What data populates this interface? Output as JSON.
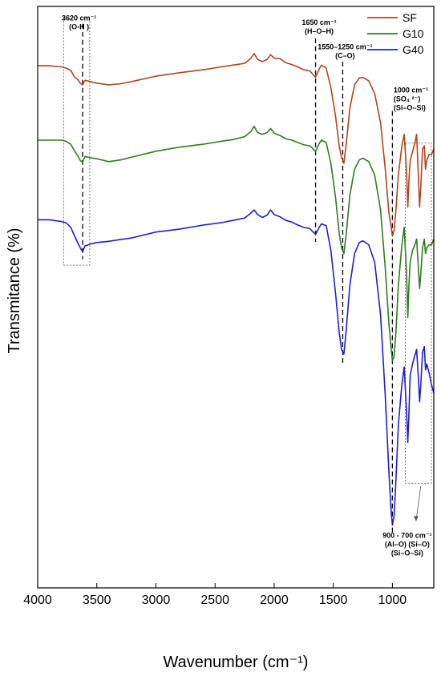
{
  "chart_data": {
    "type": "line",
    "xlabel": "Wavenumber (cm⁻¹)",
    "ylabel": "Transmitance (%)",
    "xlim": [
      4000,
      650
    ],
    "x_reversed": true,
    "x_ticks": [
      4000,
      3500,
      3000,
      2500,
      2000,
      1500,
      1000
    ],
    "y_ticks_shown": false,
    "y_units": "arbitrary transmittance (stacked, offset)",
    "ylim": [
      0,
      100
    ],
    "legend_position": "top-right",
    "series": [
      {
        "name": "SF",
        "color": "#b5441c",
        "points": [
          [
            4000,
            89.8
          ],
          [
            3900,
            89.8
          ],
          [
            3800,
            89.6
          ],
          [
            3760,
            89.4
          ],
          [
            3720,
            89.0
          ],
          [
            3690,
            87.9
          ],
          [
            3660,
            87.4
          ],
          [
            3640,
            86.8
          ],
          [
            3620,
            86.5
          ],
          [
            3600,
            87.3
          ],
          [
            3560,
            87.1
          ],
          [
            3500,
            86.8
          ],
          [
            3400,
            86.5
          ],
          [
            3300,
            86.7
          ],
          [
            3200,
            87.1
          ],
          [
            3000,
            88.0
          ],
          [
            2800,
            88.6
          ],
          [
            2600,
            89.1
          ],
          [
            2450,
            89.6
          ],
          [
            2350,
            89.9
          ],
          [
            2250,
            90.2
          ],
          [
            2200,
            91.0
          ],
          [
            2170,
            91.9
          ],
          [
            2140,
            90.9
          ],
          [
            2100,
            90.5
          ],
          [
            2060,
            90.9
          ],
          [
            2030,
            91.7
          ],
          [
            2000,
            91.1
          ],
          [
            1950,
            91.0
          ],
          [
            1900,
            90.3
          ],
          [
            1850,
            90.0
          ],
          [
            1800,
            89.6
          ],
          [
            1750,
            89.1
          ],
          [
            1700,
            88.9
          ],
          [
            1680,
            88.5
          ],
          [
            1650,
            87.8
          ],
          [
            1620,
            89.2
          ],
          [
            1600,
            89.9
          ],
          [
            1560,
            89.4
          ],
          [
            1520,
            86.0
          ],
          [
            1480,
            81.0
          ],
          [
            1450,
            76.0
          ],
          [
            1430,
            74.0
          ],
          [
            1410,
            73.0
          ],
          [
            1390,
            76.5
          ],
          [
            1360,
            82.5
          ],
          [
            1320,
            86.5
          ],
          [
            1280,
            87.7
          ],
          [
            1250,
            87.8
          ],
          [
            1200,
            87.2
          ],
          [
            1150,
            85.0
          ],
          [
            1100,
            80.0
          ],
          [
            1060,
            72.0
          ],
          [
            1030,
            64.5
          ],
          [
            1010,
            62.0
          ],
          [
            1000,
            60.5
          ],
          [
            985,
            61.5
          ],
          [
            970,
            65.0
          ],
          [
            950,
            71.0
          ],
          [
            920,
            76.0
          ],
          [
            900,
            78.0
          ],
          [
            880,
            71.5
          ],
          [
            870,
            65.5
          ],
          [
            860,
            70.0
          ],
          [
            850,
            73.5
          ],
          [
            830,
            75.0
          ],
          [
            810,
            76.5
          ],
          [
            795,
            78.0
          ],
          [
            780,
            71.0
          ],
          [
            770,
            65.5
          ],
          [
            760,
            69.0
          ],
          [
            745,
            75.5
          ],
          [
            730,
            76.0
          ],
          [
            720,
            72.0
          ],
          [
            710,
            73.5
          ],
          [
            690,
            74.5
          ],
          [
            670,
            74.5
          ],
          [
            650,
            75.5
          ]
        ]
      },
      {
        "name": "G10",
        "color": "#2e7d1f",
        "points": [
          [
            4000,
            77.0
          ],
          [
            3900,
            77.0
          ],
          [
            3800,
            77.0
          ],
          [
            3760,
            76.8
          ],
          [
            3720,
            76.3
          ],
          [
            3690,
            75.2
          ],
          [
            3660,
            74.3
          ],
          [
            3640,
            73.5
          ],
          [
            3620,
            73.2
          ],
          [
            3600,
            74.2
          ],
          [
            3560,
            74.0
          ],
          [
            3500,
            73.8
          ],
          [
            3400,
            73.3
          ],
          [
            3300,
            73.6
          ],
          [
            3200,
            74.1
          ],
          [
            3000,
            75.1
          ],
          [
            2800,
            75.8
          ],
          [
            2600,
            76.3
          ],
          [
            2450,
            76.8
          ],
          [
            2350,
            77.1
          ],
          [
            2250,
            77.6
          ],
          [
            2200,
            78.4
          ],
          [
            2170,
            79.4
          ],
          [
            2140,
            78.3
          ],
          [
            2100,
            78.0
          ],
          [
            2060,
            78.3
          ],
          [
            2030,
            79.0
          ],
          [
            2000,
            78.2
          ],
          [
            1950,
            77.8
          ],
          [
            1900,
            77.2
          ],
          [
            1850,
            77.0
          ],
          [
            1800,
            76.6
          ],
          [
            1750,
            76.2
          ],
          [
            1700,
            76.0
          ],
          [
            1680,
            75.7
          ],
          [
            1650,
            75.0
          ],
          [
            1620,
            76.4
          ],
          [
            1600,
            77.0
          ],
          [
            1560,
            76.6
          ],
          [
            1520,
            73.0
          ],
          [
            1480,
            67.0
          ],
          [
            1450,
            61.0
          ],
          [
            1430,
            58.5
          ],
          [
            1410,
            57.5
          ],
          [
            1390,
            61.0
          ],
          [
            1360,
            67.5
          ],
          [
            1320,
            72.0
          ],
          [
            1280,
            73.6
          ],
          [
            1250,
            73.9
          ],
          [
            1200,
            73.3
          ],
          [
            1150,
            71.0
          ],
          [
            1100,
            65.0
          ],
          [
            1060,
            55.0
          ],
          [
            1030,
            45.5
          ],
          [
            1010,
            41.0
          ],
          [
            1000,
            39.0
          ],
          [
            985,
            40.0
          ],
          [
            970,
            44.0
          ],
          [
            950,
            52.0
          ],
          [
            920,
            59.0
          ],
          [
            900,
            62.0
          ],
          [
            880,
            54.0
          ],
          [
            870,
            46.5
          ],
          [
            860,
            52.0
          ],
          [
            850,
            56.0
          ],
          [
            830,
            58.0
          ],
          [
            810,
            59.0
          ],
          [
            795,
            60.0
          ],
          [
            780,
            55.0
          ],
          [
            770,
            51.5
          ],
          [
            760,
            54.0
          ],
          [
            745,
            58.5
          ],
          [
            730,
            60.0
          ],
          [
            720,
            57.5
          ],
          [
            710,
            58.5
          ],
          [
            690,
            59.0
          ],
          [
            670,
            59.0
          ],
          [
            650,
            60.0
          ]
        ]
      },
      {
        "name": "G40",
        "color": "#1f1fd0",
        "points": [
          [
            4000,
            63.3
          ],
          [
            3900,
            63.3
          ],
          [
            3800,
            63.0
          ],
          [
            3760,
            62.8
          ],
          [
            3720,
            62.0
          ],
          [
            3690,
            60.6
          ],
          [
            3660,
            59.3
          ],
          [
            3640,
            58.5
          ],
          [
            3620,
            57.8
          ],
          [
            3600,
            58.8
          ],
          [
            3560,
            59.1
          ],
          [
            3500,
            59.4
          ],
          [
            3400,
            59.6
          ],
          [
            3300,
            59.9
          ],
          [
            3200,
            60.2
          ],
          [
            3000,
            61.2
          ],
          [
            2800,
            61.7
          ],
          [
            2600,
            62.4
          ],
          [
            2450,
            62.8
          ],
          [
            2350,
            63.2
          ],
          [
            2250,
            63.6
          ],
          [
            2200,
            64.4
          ],
          [
            2170,
            65.0
          ],
          [
            2140,
            64.2
          ],
          [
            2100,
            63.7
          ],
          [
            2060,
            64.1
          ],
          [
            2030,
            65.0
          ],
          [
            2000,
            64.2
          ],
          [
            1950,
            63.8
          ],
          [
            1900,
            63.2
          ],
          [
            1850,
            62.9
          ],
          [
            1800,
            62.4
          ],
          [
            1750,
            62.0
          ],
          [
            1700,
            61.8
          ],
          [
            1680,
            61.4
          ],
          [
            1650,
            60.8
          ],
          [
            1620,
            62.0
          ],
          [
            1600,
            62.6
          ],
          [
            1560,
            62.3
          ],
          [
            1520,
            58.0
          ],
          [
            1480,
            50.5
          ],
          [
            1450,
            44.0
          ],
          [
            1430,
            41.0
          ],
          [
            1410,
            40.2
          ],
          [
            1390,
            44.5
          ],
          [
            1360,
            52.0
          ],
          [
            1320,
            57.5
          ],
          [
            1280,
            59.4
          ],
          [
            1250,
            59.7
          ],
          [
            1200,
            59.0
          ],
          [
            1150,
            56.0
          ],
          [
            1100,
            47.0
          ],
          [
            1060,
            33.0
          ],
          [
            1030,
            20.0
          ],
          [
            1010,
            13.0
          ],
          [
            1000,
            10.8
          ],
          [
            985,
            12.5
          ],
          [
            970,
            18.5
          ],
          [
            950,
            28.0
          ],
          [
            920,
            35.0
          ],
          [
            900,
            38.0
          ],
          [
            880,
            30.0
          ],
          [
            870,
            25.0
          ],
          [
            860,
            30.0
          ],
          [
            850,
            36.5
          ],
          [
            830,
            38.5
          ],
          [
            810,
            40.0
          ],
          [
            795,
            41.0
          ],
          [
            780,
            36.0
          ],
          [
            770,
            32.0
          ],
          [
            760,
            35.0
          ],
          [
            745,
            40.5
          ],
          [
            730,
            41.5
          ],
          [
            720,
            37.5
          ],
          [
            710,
            38.5
          ],
          [
            690,
            37.0
          ],
          [
            670,
            35.0
          ],
          [
            650,
            33.5
          ]
        ]
      }
    ],
    "annotations": [
      {
        "lines": [
          "3620 cm⁻¹",
          "(O-H )"
        ],
        "x": 3650,
        "y": 97.6,
        "anchor": "middle"
      },
      {
        "lines": [
          "1650 cm⁻¹",
          "(H–O–H)"
        ],
        "x": 1620,
        "y": 96.8,
        "anchor": "middle"
      },
      {
        "lines": [
          "1550–1250 cm⁻¹",
          "(C–O)"
        ],
        "x": 1400,
        "y": 92.6,
        "anchor": "middle"
      },
      {
        "lines": [
          "1000 cm⁻¹",
          "(SO₄ ²⁻)",
          "(Si–O–Si)"
        ],
        "x": 990,
        "y": 85.2,
        "anchor": "start"
      },
      {
        "lines": [
          "900 - 700 cm⁻¹",
          "(Al–O)  (Si–O)",
          "(Si–O–Si)"
        ],
        "x": 875,
        "y": 8.6,
        "anchor": "middle"
      }
    ],
    "dashed_markers": [
      3620,
      1650,
      1420,
      1000
    ],
    "highlight_regions": [
      {
        "x_from": 3780,
        "x_to": 3560,
        "y_from": 55.5,
        "y_to": 98.0
      },
      {
        "x_from": 890,
        "x_to": 670,
        "y_from": 18.0,
        "y_to": 76.5
      }
    ]
  }
}
